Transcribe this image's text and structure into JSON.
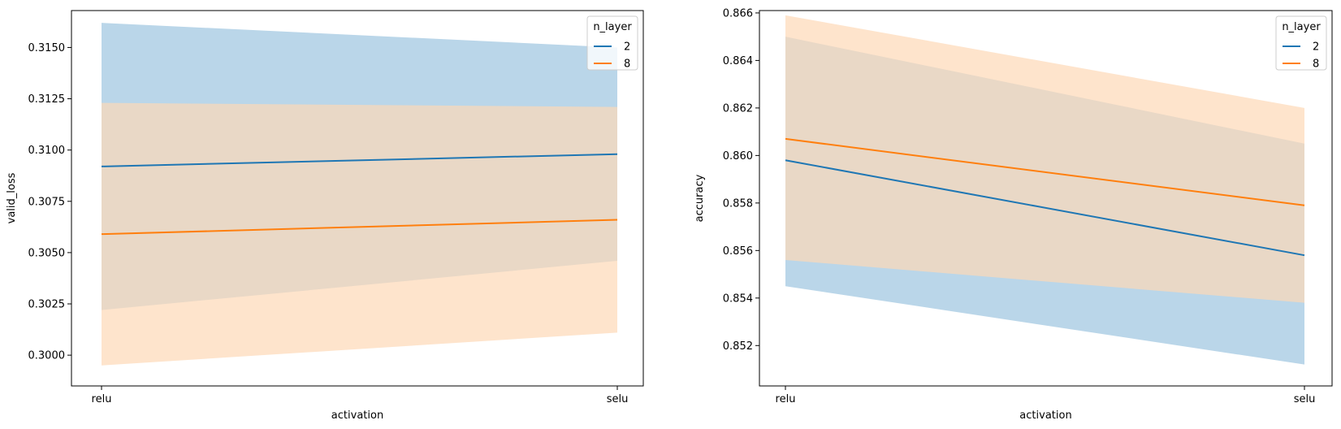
{
  "chart_data": [
    {
      "type": "line",
      "xlabel": "activation",
      "ylabel": "valid_loss",
      "categories": [
        "relu",
        "selu"
      ],
      "ylim": [
        0.2985,
        0.3168
      ],
      "yticks": [
        0.3,
        0.3025,
        0.305,
        0.3075,
        0.31,
        0.3125,
        0.315
      ],
      "ytick_labels": [
        "0.3000",
        "0.3025",
        "0.3050",
        "0.3075",
        "0.3100",
        "0.3125",
        "0.3150"
      ],
      "grid": false,
      "legend": {
        "title": "n_layer",
        "placement": "top-right"
      },
      "series": [
        {
          "name": "2",
          "color": "#1f77b4",
          "band_color": "#bad6e9",
          "values": [
            0.3092,
            0.3098
          ],
          "ci_low": [
            0.3022,
            0.3046
          ],
          "ci_high": [
            0.3162,
            0.315
          ]
        },
        {
          "name": "8",
          "color": "#ff7f0e",
          "band_color": "#fed8b6",
          "values": [
            0.3059,
            0.3066
          ],
          "ci_low": [
            0.2995,
            0.3011
          ],
          "ci_high": [
            0.3123,
            0.3121
          ]
        }
      ]
    },
    {
      "type": "line",
      "xlabel": "activation",
      "ylabel": "accuracy",
      "categories": [
        "relu",
        "selu"
      ],
      "ylim": [
        0.8503,
        0.8661
      ],
      "yticks": [
        0.852,
        0.854,
        0.856,
        0.858,
        0.86,
        0.862,
        0.864,
        0.866
      ],
      "ytick_labels": [
        "0.852",
        "0.854",
        "0.856",
        "0.858",
        "0.860",
        "0.862",
        "0.864",
        "0.866"
      ],
      "grid": false,
      "legend": {
        "title": "n_layer",
        "placement": "top-right"
      },
      "series": [
        {
          "name": "2",
          "color": "#1f77b4",
          "band_color": "#bad6e9",
          "values": [
            0.8598,
            0.8558
          ],
          "ci_low": [
            0.8545,
            0.8512
          ],
          "ci_high": [
            0.865,
            0.8605
          ]
        },
        {
          "name": "8",
          "color": "#ff7f0e",
          "band_color": "#fed8b6",
          "values": [
            0.8607,
            0.8579
          ],
          "ci_low": [
            0.8556,
            0.8538
          ],
          "ci_high": [
            0.8659,
            0.862
          ]
        }
      ]
    }
  ]
}
